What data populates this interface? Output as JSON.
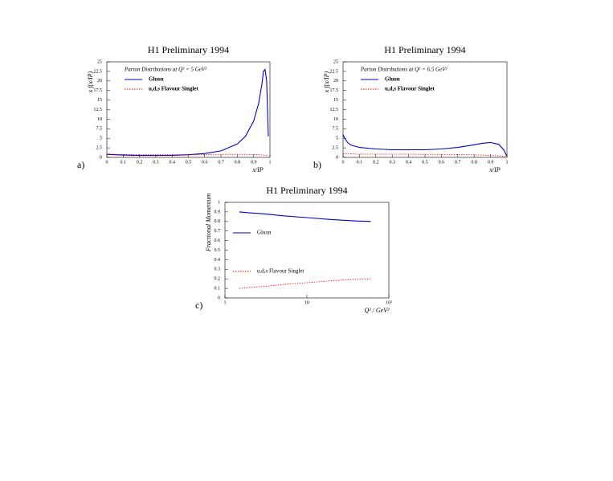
{
  "chart_data": [
    {
      "type": "line",
      "title": "H1 Preliminary 1994",
      "panel_label": "a)",
      "annotation": "Parton Distributions at Q² = 5 GeV²",
      "ylabel": "x f(x/IP)",
      "xlabel": "x/IP",
      "xlim": [
        0,
        1
      ],
      "xticks": [
        0,
        0.1,
        0.2,
        0.3,
        0.4,
        0.5,
        0.6,
        0.7,
        0.8,
        0.9,
        1
      ],
      "ylim": [
        0,
        25
      ],
      "yticks": [
        0,
        2.5,
        5,
        7.5,
        10,
        12.5,
        15,
        17.5,
        20,
        22.5,
        25
      ],
      "legend": "upper left",
      "x": [
        0,
        0.05,
        0.1,
        0.2,
        0.3,
        0.4,
        0.5,
        0.6,
        0.7,
        0.8,
        0.85,
        0.9,
        0.93,
        0.95,
        0.96,
        0.97,
        0.98,
        0.99
      ],
      "series": [
        {
          "name": "Gluon",
          "color": "#0000cc",
          "linestyle": "solid",
          "values": [
            0.8,
            0.7,
            0.6,
            0.5,
            0.5,
            0.55,
            0.7,
            1.0,
            1.7,
            3.5,
            5.5,
            9.5,
            14,
            19,
            22.5,
            23,
            20,
            5.5
          ]
        },
        {
          "name": "u,d,s Flavour Singlet",
          "color": "#ff0000",
          "linestyle": "dotted",
          "values": [
            0.9,
            0.8,
            0.75,
            0.7,
            0.7,
            0.7,
            0.7,
            0.75,
            0.8,
            0.8,
            0.8,
            0.75,
            0.7,
            0.65,
            0.6,
            0.55,
            0.5,
            0.4
          ]
        }
      ]
    },
    {
      "type": "line",
      "title": "H1 Preliminary 1994",
      "panel_label": "b)",
      "annotation": "Parton Distributions at Q² = 6.5 GeV²",
      "ylabel": "x f(x/IP)",
      "xlabel": "x/IP",
      "xlim": [
        0,
        1
      ],
      "xticks": [
        0,
        0.1,
        0.2,
        0.3,
        0.4,
        0.5,
        0.6,
        0.7,
        0.8,
        0.9,
        1
      ],
      "ylim": [
        0,
        25
      ],
      "yticks": [
        0,
        2.5,
        5,
        7.5,
        10,
        12.5,
        15,
        17.5,
        20,
        22.5,
        25
      ],
      "legend": "upper left",
      "x": [
        0,
        0.01,
        0.03,
        0.05,
        0.1,
        0.2,
        0.3,
        0.4,
        0.5,
        0.6,
        0.7,
        0.8,
        0.85,
        0.9,
        0.95,
        0.98,
        1
      ],
      "series": [
        {
          "name": "Gluon",
          "color": "#0000cc",
          "linestyle": "solid",
          "values": [
            6,
            5,
            3.8,
            3.2,
            2.6,
            2.2,
            2,
            2,
            2,
            2.2,
            2.6,
            3.3,
            3.7,
            3.9,
            3.4,
            2,
            0.3
          ]
        },
        {
          "name": "u,d,s Flavour Singlet",
          "color": "#ff0000",
          "linestyle": "dotted",
          "values": [
            1,
            0.95,
            0.9,
            0.9,
            0.85,
            0.85,
            0.85,
            0.85,
            0.8,
            0.8,
            0.75,
            0.65,
            0.6,
            0.5,
            0.4,
            0.3,
            0.2
          ]
        }
      ]
    },
    {
      "type": "line",
      "title": "H1 Preliminary 1994",
      "panel_label": "c)",
      "ylabel": "Fractional Momentum",
      "xlabel": "Q² / GeV²",
      "xscale": "log",
      "xlim": [
        1,
        100
      ],
      "xticks": [
        1,
        10,
        {
          "value": 100,
          "label": "10²"
        }
      ],
      "ylim": [
        0,
        1
      ],
      "yticks": [
        0,
        0.1,
        0.2,
        0.3,
        0.4,
        0.5,
        0.6,
        0.7,
        0.8,
        0.9,
        1
      ],
      "legend": "center left",
      "x": [
        1.5,
        2,
        3,
        5,
        10,
        20,
        40,
        60
      ],
      "series": [
        {
          "name": "Gluon",
          "color": "#0000cc",
          "linestyle": "solid",
          "values": [
            0.9,
            0.89,
            0.88,
            0.86,
            0.84,
            0.82,
            0.805,
            0.8
          ]
        },
        {
          "name": "u,d,s Flavour Singlet",
          "color": "#ff0000",
          "linestyle": "dotted",
          "values": [
            0.1,
            0.11,
            0.12,
            0.14,
            0.16,
            0.18,
            0.195,
            0.2
          ]
        }
      ]
    }
  ]
}
